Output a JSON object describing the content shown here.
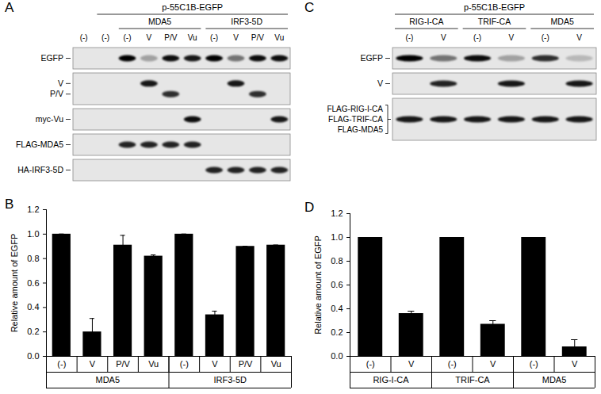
{
  "blots": [
    {
      "panel": "A",
      "header": "p-55C1B-EGFP",
      "lanes": [
        {
          "label": "(-)",
          "group": null,
          "under_header": false
        },
        {
          "label": "(-)",
          "group": null,
          "under_header": true
        },
        {
          "label": "(-)",
          "group": "MDA5",
          "under_header": true
        },
        {
          "label": "V",
          "group": "MDA5",
          "under_header": true
        },
        {
          "label": "P/V",
          "group": "MDA5",
          "under_header": true
        },
        {
          "label": "Vu",
          "group": "MDA5",
          "under_header": true
        },
        {
          "label": "(-)",
          "group": "IRF3-5D",
          "under_header": true
        },
        {
          "label": "V",
          "group": "IRF3-5D",
          "under_header": true
        },
        {
          "label": "P/V",
          "group": "IRF3-5D",
          "under_header": true
        },
        {
          "label": "Vu",
          "group": "IRF3-5D",
          "under_header": true
        }
      ],
      "rows": [
        {
          "labels": [
            "EGFP"
          ],
          "bands": [
            [
              0,
              0,
              1,
              0.3,
              0.95,
              0.9,
              1,
              0.5,
              0.95,
              0.95
            ]
          ]
        },
        {
          "labels": [
            "V",
            "P/V"
          ],
          "bands": [
            [
              0,
              0,
              0,
              0.9,
              0,
              0,
              0,
              0.9,
              0,
              0
            ],
            [
              0,
              0,
              0,
              0,
              0.8,
              0,
              0,
              0,
              0.8,
              0
            ]
          ]
        },
        {
          "labels": [
            "myc-Vu"
          ],
          "bands": [
            [
              0,
              0,
              0,
              0,
              0,
              0.95,
              0,
              0,
              0,
              0.9
            ]
          ]
        },
        {
          "labels": [
            "FLAG-MDA5"
          ],
          "bands": [
            [
              0,
              0,
              0.85,
              0.85,
              0.85,
              0.85,
              0,
              0,
              0,
              0
            ]
          ]
        },
        {
          "labels": [
            "HA-IRF3-5D"
          ],
          "bands": [
            [
              0,
              0,
              0,
              0,
              0,
              0,
              0.85,
              0.85,
              0.85,
              0.85
            ]
          ]
        }
      ]
    },
    {
      "panel": "C",
      "header": "p-55C1B-EGFP",
      "lanes": [
        {
          "label": "(-)",
          "group": "RIG-I-CA",
          "under_header": true
        },
        {
          "label": "V",
          "group": "RIG-I-CA",
          "under_header": true
        },
        {
          "label": "(-)",
          "group": "TRIF-CA",
          "under_header": true
        },
        {
          "label": "V",
          "group": "TRIF-CA",
          "under_header": true
        },
        {
          "label": "(-)",
          "group": "MDA5",
          "under_header": true
        },
        {
          "label": "V",
          "group": "MDA5",
          "under_header": true
        }
      ],
      "rows": [
        {
          "labels": [
            "EGFP"
          ],
          "bands": [
            [
              1,
              0.5,
              0.95,
              0.3,
              0.8,
              0.2
            ]
          ]
        },
        {
          "labels": [
            "V"
          ],
          "bands": [
            [
              0,
              0.85,
              0,
              0.9,
              0,
              0.9
            ]
          ]
        },
        {
          "labels": [
            "FLAG-RIG-I-CA",
            "FLAG-TRIF-CA",
            "FLAG-MDA5"
          ],
          "bands": [
            [
              0.9,
              0.9,
              0.9,
              0.9,
              0.9,
              0.9
            ]
          ]
        }
      ]
    }
  ],
  "chart_data": [
    {
      "panel": "B",
      "type": "bar",
      "y_label": "Relative amount of EGFP",
      "categories": [
        "(-)",
        "V",
        "P/V",
        "Vu",
        "(-)",
        "V",
        "P/V",
        "Vu"
      ],
      "groups": [
        "MDA5",
        "MDA5",
        "MDA5",
        "MDA5",
        "IRF3-5D",
        "IRF3-5D",
        "IRF3-5D",
        "IRF3-5D"
      ],
      "values": [
        1,
        0.2,
        0.91,
        0.82,
        1,
        0.34,
        0.9,
        0.91
      ],
      "errors": [
        0,
        0.11,
        0.08,
        0.01,
        0,
        0.03,
        0,
        0
      ],
      "color": "#000000",
      "ylim": [
        0,
        1.2
      ],
      "yticks": [
        0,
        0.2,
        0.4,
        0.6,
        0.8,
        1,
        1.2
      ],
      "grid": false
    },
    {
      "panel": "D",
      "type": "bar",
      "y_label": "Relative amount of EGFP",
      "categories": [
        "(-)",
        "V",
        "(-)",
        "V",
        "(-)",
        "V"
      ],
      "groups": [
        "RIG-I-CA",
        "RIG-I-CA",
        "TRIF-CA",
        "TRIF-CA",
        "MDA5",
        "MDA5"
      ],
      "values": [
        1,
        0.36,
        1,
        0.27,
        1,
        0.08
      ],
      "errors": [
        0,
        0.02,
        0,
        0.03,
        0,
        0.06
      ],
      "color": "#000000",
      "ylim": [
        0,
        1.2
      ],
      "yticks": [
        0,
        0.2,
        0.4,
        0.6,
        0.8,
        1,
        1.2
      ],
      "grid": false
    }
  ]
}
